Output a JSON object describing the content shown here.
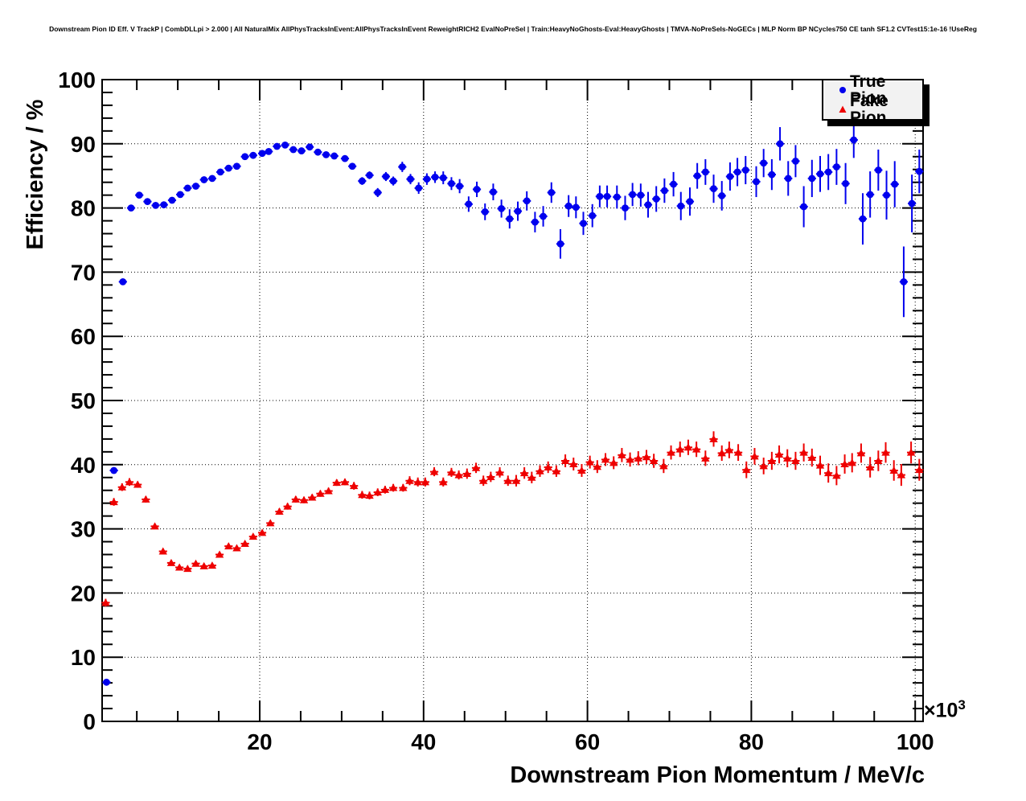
{
  "title": "Downstream Pion ID Eff. V TrackP | CombDLLpi > 2.000 | All NaturalMix AllPhysTracksInEvent:AllPhysTracksInEvent ReweightRICH2 EvalNoPreSel | Train:HeavyNoGhosts-Eval:HeavyGhosts | TMVA-NoPreSels-NoGECs | MLP Norm BP NCycles750 CE tanh SF1.2 CVTest15:1e-16 !UseReg",
  "axes": {
    "x": {
      "major_ticks": [
        20,
        40,
        60,
        80,
        100
      ],
      "minor_step": 5,
      "exponent_base": "×10",
      "exponent_power": "3"
    },
    "y": {
      "major_ticks": [
        0,
        10,
        20,
        30,
        40,
        50,
        60,
        70,
        80,
        90,
        100
      ],
      "minor_step": 2
    }
  },
  "legend": {
    "entries": [
      {
        "label": "True Pion",
        "marker": "circle",
        "color": "#0000ee"
      },
      {
        "label": "Fake Pion",
        "marker": "triangle",
        "color": "#ee0000"
      }
    ]
  },
  "chart_data": {
    "type": "scatter",
    "title": "Downstream Pion ID Eff. V TrackP | CombDLLpi > 2.000",
    "xlabel": "Downstream Pion Momentum / MeV/c",
    "ylabel": "Efficiency / %",
    "x_unit_multiplier": "1e3",
    "xlim": [
      0.8,
      101.0
    ],
    "ylim": [
      0,
      100
    ],
    "grid": true,
    "legend_position": "top-right",
    "x_half_bin": 0.5,
    "series": [
      {
        "name": "True Pion",
        "marker": "circle",
        "color": "#0000ee",
        "points": [
          [
            1.3,
            6.1,
            0.4
          ],
          [
            2.2,
            39.1,
            0.5
          ],
          [
            3.3,
            68.5,
            0.5
          ],
          [
            4.3,
            80.0,
            0.4
          ],
          [
            5.3,
            82.0,
            0.4
          ],
          [
            6.3,
            81.0,
            0.4
          ],
          [
            7.3,
            80.4,
            0.3
          ],
          [
            8.3,
            80.5,
            0.3
          ],
          [
            9.3,
            81.2,
            0.3
          ],
          [
            10.3,
            82.1,
            0.3
          ],
          [
            11.2,
            83.1,
            0.3
          ],
          [
            12.2,
            83.4,
            0.3
          ],
          [
            13.2,
            84.4,
            0.3
          ],
          [
            14.2,
            84.6,
            0.3
          ],
          [
            15.2,
            85.6,
            0.3
          ],
          [
            16.2,
            86.2,
            0.3
          ],
          [
            17.2,
            86.5,
            0.3
          ],
          [
            18.2,
            88.0,
            0.3
          ],
          [
            19.2,
            88.2,
            0.3
          ],
          [
            20.3,
            88.5,
            0.3
          ],
          [
            21.1,
            88.8,
            0.3
          ],
          [
            22.1,
            89.6,
            0.3
          ],
          [
            23.1,
            89.8,
            0.3
          ],
          [
            24.1,
            89.1,
            0.3
          ],
          [
            25.1,
            88.9,
            0.3
          ],
          [
            26.1,
            89.5,
            0.4
          ],
          [
            27.1,
            88.7,
            0.4
          ],
          [
            28.1,
            88.3,
            0.4
          ],
          [
            29.1,
            88.1,
            0.4
          ],
          [
            30.4,
            87.7,
            0.5
          ],
          [
            31.3,
            86.5,
            0.5
          ],
          [
            32.5,
            84.2,
            0.6
          ],
          [
            33.4,
            85.1,
            0.6
          ],
          [
            34.4,
            82.4,
            0.7
          ],
          [
            35.4,
            84.9,
            0.7
          ],
          [
            36.3,
            84.2,
            0.7
          ],
          [
            37.4,
            86.4,
            0.8
          ],
          [
            38.4,
            84.5,
            0.8
          ],
          [
            39.4,
            83.1,
            0.9
          ],
          [
            40.4,
            84.5,
            0.9
          ],
          [
            41.4,
            84.8,
            0.9
          ],
          [
            42.4,
            84.7,
            1.0
          ],
          [
            43.4,
            83.8,
            1.0
          ],
          [
            44.4,
            83.4,
            1.1
          ],
          [
            45.5,
            80.6,
            1.2
          ],
          [
            46.5,
            82.9,
            1.2
          ],
          [
            47.5,
            79.4,
            1.3
          ],
          [
            48.5,
            82.5,
            1.3
          ],
          [
            49.5,
            79.9,
            1.4
          ],
          [
            50.5,
            78.3,
            1.5
          ],
          [
            51.5,
            79.5,
            1.5
          ],
          [
            52.6,
            81.1,
            1.5
          ],
          [
            53.6,
            77.8,
            1.6
          ],
          [
            54.6,
            78.7,
            1.6
          ],
          [
            55.6,
            82.4,
            1.6
          ],
          [
            56.7,
            74.4,
            2.3
          ],
          [
            57.7,
            80.3,
            1.7
          ],
          [
            58.6,
            80.1,
            1.7
          ],
          [
            59.5,
            77.6,
            1.8
          ],
          [
            60.6,
            78.8,
            1.8
          ],
          [
            61.5,
            81.8,
            1.7
          ],
          [
            62.4,
            81.8,
            1.7
          ],
          [
            63.6,
            81.7,
            1.8
          ],
          [
            64.6,
            80.0,
            1.9
          ],
          [
            65.5,
            82.1,
            1.8
          ],
          [
            66.5,
            82.0,
            1.8
          ],
          [
            67.4,
            80.5,
            2.0
          ],
          [
            68.4,
            81.4,
            2.0
          ],
          [
            69.4,
            82.7,
            1.9
          ],
          [
            70.5,
            83.7,
            1.9
          ],
          [
            71.4,
            80.3,
            2.2
          ],
          [
            72.5,
            81.0,
            2.2
          ],
          [
            73.4,
            85.0,
            2.0
          ],
          [
            74.4,
            85.6,
            2.0
          ],
          [
            75.4,
            83.0,
            2.2
          ],
          [
            76.4,
            81.9,
            2.3
          ],
          [
            77.4,
            84.9,
            2.2
          ],
          [
            78.3,
            85.6,
            2.2
          ],
          [
            79.3,
            85.9,
            2.2
          ],
          [
            80.6,
            84.1,
            2.4
          ],
          [
            81.5,
            87.0,
            2.2
          ],
          [
            82.5,
            85.2,
            2.4
          ],
          [
            83.5,
            90.0,
            2.6
          ],
          [
            84.5,
            84.6,
            2.7
          ],
          [
            85.4,
            87.3,
            2.5
          ],
          [
            86.4,
            80.2,
            3.2
          ],
          [
            87.4,
            84.6,
            2.9
          ],
          [
            88.4,
            85.3,
            2.8
          ],
          [
            89.4,
            85.6,
            2.8
          ],
          [
            90.4,
            86.4,
            2.8
          ],
          [
            91.5,
            83.8,
            3.2
          ],
          [
            92.5,
            90.6,
            2.8
          ],
          [
            93.6,
            78.3,
            4.0
          ],
          [
            94.5,
            82.1,
            3.6
          ],
          [
            95.5,
            85.9,
            3.2
          ],
          [
            96.5,
            82.0,
            3.8
          ],
          [
            97.5,
            83.7,
            3.6
          ],
          [
            98.6,
            68.5,
            5.5
          ],
          [
            99.6,
            80.7,
            4.5
          ],
          [
            100.5,
            85.7,
            3.4
          ]
        ]
      },
      {
        "name": "Fake Pion",
        "marker": "triangle",
        "color": "#ee0000",
        "points": [
          [
            1.2,
            18.5,
            0.6
          ],
          [
            2.2,
            34.2,
            0.6
          ],
          [
            3.2,
            36.5,
            0.6
          ],
          [
            4.1,
            37.3,
            0.6
          ],
          [
            5.1,
            36.9,
            0.5
          ],
          [
            6.1,
            34.6,
            0.5
          ],
          [
            7.2,
            30.4,
            0.4
          ],
          [
            8.2,
            26.5,
            0.4
          ],
          [
            9.2,
            24.7,
            0.4
          ],
          [
            10.2,
            24.0,
            0.4
          ],
          [
            11.2,
            23.8,
            0.4
          ],
          [
            12.2,
            24.6,
            0.4
          ],
          [
            13.2,
            24.2,
            0.4
          ],
          [
            14.2,
            24.3,
            0.4
          ],
          [
            15.1,
            26.0,
            0.4
          ],
          [
            16.2,
            27.3,
            0.4
          ],
          [
            17.2,
            27.0,
            0.4
          ],
          [
            18.2,
            27.7,
            0.4
          ],
          [
            19.2,
            28.8,
            0.4
          ],
          [
            20.3,
            29.4,
            0.4
          ],
          [
            21.3,
            30.9,
            0.4
          ],
          [
            22.4,
            32.7,
            0.5
          ],
          [
            23.4,
            33.5,
            0.5
          ],
          [
            24.4,
            34.6,
            0.5
          ],
          [
            25.4,
            34.5,
            0.5
          ],
          [
            26.4,
            34.9,
            0.5
          ],
          [
            27.4,
            35.5,
            0.5
          ],
          [
            28.4,
            35.9,
            0.5
          ],
          [
            29.4,
            37.2,
            0.5
          ],
          [
            30.4,
            37.3,
            0.5
          ],
          [
            31.5,
            36.7,
            0.6
          ],
          [
            32.5,
            35.3,
            0.6
          ],
          [
            33.4,
            35.2,
            0.6
          ],
          [
            34.4,
            35.7,
            0.6
          ],
          [
            35.3,
            36.1,
            0.6
          ],
          [
            36.3,
            36.4,
            0.6
          ],
          [
            37.5,
            36.4,
            0.6
          ],
          [
            38.3,
            37.5,
            0.7
          ],
          [
            39.3,
            37.3,
            0.7
          ],
          [
            40.2,
            37.3,
            0.7
          ],
          [
            41.3,
            38.9,
            0.7
          ],
          [
            42.4,
            37.3,
            0.7
          ],
          [
            43.4,
            38.8,
            0.7
          ],
          [
            44.3,
            38.4,
            0.7
          ],
          [
            45.3,
            38.6,
            0.8
          ],
          [
            46.4,
            39.5,
            0.8
          ],
          [
            47.3,
            37.5,
            0.8
          ],
          [
            48.2,
            38.1,
            0.8
          ],
          [
            49.3,
            38.8,
            0.8
          ],
          [
            50.3,
            37.5,
            0.8
          ],
          [
            51.3,
            37.5,
            0.9
          ],
          [
            52.3,
            38.7,
            0.9
          ],
          [
            53.2,
            38.0,
            0.9
          ],
          [
            54.2,
            39.0,
            0.9
          ],
          [
            55.2,
            39.6,
            0.9
          ],
          [
            56.2,
            39.0,
            0.9
          ],
          [
            57.3,
            40.6,
            1.0
          ],
          [
            58.3,
            40.1,
            1.0
          ],
          [
            59.3,
            39.1,
            1.0
          ],
          [
            60.3,
            40.4,
            1.0
          ],
          [
            61.2,
            39.7,
            1.0
          ],
          [
            62.2,
            40.8,
            1.0
          ],
          [
            63.2,
            40.3,
            1.0
          ],
          [
            64.2,
            41.5,
            1.1
          ],
          [
            65.2,
            40.8,
            1.1
          ],
          [
            66.2,
            41.0,
            1.1
          ],
          [
            67.2,
            41.2,
            1.1
          ],
          [
            68.1,
            40.6,
            1.1
          ],
          [
            69.3,
            39.8,
            1.1
          ],
          [
            70.2,
            41.9,
            1.1
          ],
          [
            71.3,
            42.4,
            1.2
          ],
          [
            72.3,
            42.7,
            1.2
          ],
          [
            73.3,
            42.4,
            1.2
          ],
          [
            74.4,
            41.0,
            1.2
          ],
          [
            75.4,
            44.0,
            1.2
          ],
          [
            76.4,
            41.8,
            1.2
          ],
          [
            77.3,
            42.3,
            1.3
          ],
          [
            78.4,
            41.9,
            1.3
          ],
          [
            79.4,
            39.2,
            1.3
          ],
          [
            80.4,
            41.3,
            1.3
          ],
          [
            81.5,
            39.8,
            1.3
          ],
          [
            82.5,
            40.6,
            1.4
          ],
          [
            83.4,
            41.6,
            1.4
          ],
          [
            84.4,
            41.0,
            1.4
          ],
          [
            85.4,
            40.6,
            1.4
          ],
          [
            86.4,
            41.9,
            1.4
          ],
          [
            87.4,
            41.1,
            1.4
          ],
          [
            88.4,
            39.9,
            1.5
          ],
          [
            89.4,
            38.7,
            1.5
          ],
          [
            90.4,
            38.3,
            1.5
          ],
          [
            91.4,
            40.1,
            1.5
          ],
          [
            92.3,
            40.3,
            1.5
          ],
          [
            93.4,
            41.8,
            1.5
          ],
          [
            94.5,
            39.6,
            1.6
          ],
          [
            95.5,
            40.6,
            1.6
          ],
          [
            96.4,
            41.9,
            1.6
          ],
          [
            97.4,
            39.1,
            1.6
          ],
          [
            98.3,
            38.4,
            1.7
          ],
          [
            99.5,
            41.9,
            1.7
          ],
          [
            100.5,
            39.2,
            1.7
          ]
        ]
      }
    ]
  }
}
